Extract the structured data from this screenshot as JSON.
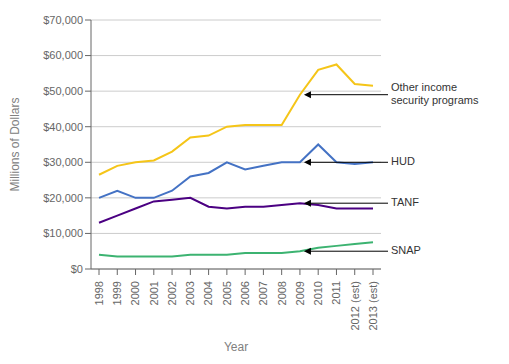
{
  "chart_data": {
    "type": "line",
    "categories": [
      "1998",
      "1999",
      "2000",
      "2001",
      "2002",
      "2003",
      "2004",
      "2005",
      "2006",
      "2007",
      "2008",
      "2009",
      "2010",
      "2011",
      "2012 (est)",
      "2013 (est)"
    ],
    "series": [
      {
        "color": "#f5c518",
        "values": [
          26500,
          29000,
          30000,
          30500,
          33000,
          37000,
          37500,
          40000,
          40500,
          40500,
          40500,
          49000,
          56000,
          57500,
          52000,
          51500
        ]
      },
      {
        "color": "#4472c4",
        "values": [
          20000,
          22000,
          20000,
          20000,
          22000,
          26000,
          27000,
          30000,
          28000,
          29000,
          30000,
          30000,
          35000,
          30000,
          29500,
          30000
        ]
      },
      {
        "color": "#4b0082",
        "values": [
          13000,
          15000,
          17000,
          19000,
          19500,
          20000,
          17500,
          17000,
          17500,
          17500,
          18000,
          18500,
          18000,
          17000,
          17000,
          17000
        ]
      },
      {
        "color": "#3cb371",
        "values": [
          4000,
          3500,
          3500,
          3500,
          3500,
          4000,
          4000,
          4000,
          4500,
          4500,
          4500,
          5000,
          6000,
          6500,
          7000,
          7500
        ]
      }
    ],
    "xlabel": "Year",
    "ylabel": "Millions of Dollars",
    "ylim": [
      0,
      70000
    ],
    "yticks": [
      {
        "value": 0,
        "label": "$0"
      },
      {
        "value": 10000,
        "label": "$10,000"
      },
      {
        "value": 20000,
        "label": "$20,000"
      },
      {
        "value": 30000,
        "label": "$30,000"
      },
      {
        "value": 40000,
        "label": "$40,000"
      },
      {
        "value": 50000,
        "label": "$50,000"
      },
      {
        "value": 60000,
        "label": "$60,000"
      },
      {
        "value": 70000,
        "label": "$70,000"
      }
    ],
    "grid": true,
    "annotations": [
      {
        "text": "Other income\nsecurity programs",
        "x": "2009",
        "y": 49000
      },
      {
        "text": "HUD",
        "x": "2009",
        "y": 30000
      },
      {
        "text": "TANF",
        "x": "2009",
        "y": 18500
      },
      {
        "text": "SNAP",
        "x": "2009",
        "y": 5000
      }
    ]
  }
}
